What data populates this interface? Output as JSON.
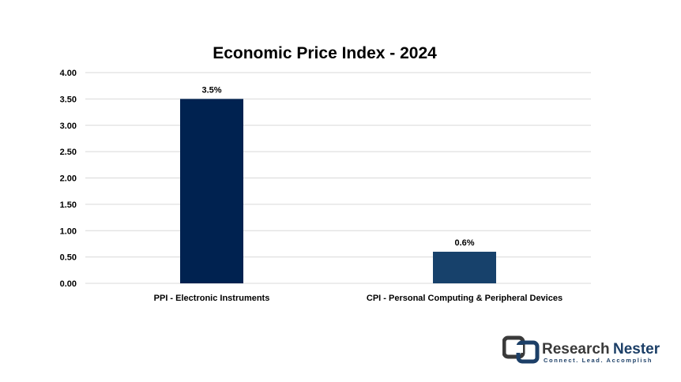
{
  "chart_data": {
    "type": "bar",
    "title": "Economic Price Index - 2024",
    "categories": [
      "PPI - Electronic Instruments",
      "CPI - Personal Computing & Peripheral Devices"
    ],
    "values": [
      3.5,
      0.6
    ],
    "data_labels": [
      "3.5%",
      "0.6%"
    ],
    "bar_colors": [
      "#002250",
      "#17416b"
    ],
    "ylim": [
      0,
      4
    ],
    "yticks": [
      "0.00",
      "0.50",
      "1.00",
      "1.50",
      "2.00",
      "2.50",
      "3.00",
      "3.50",
      "4.00"
    ],
    "grid": true,
    "legend": "none"
  },
  "brand": {
    "name_part1": "Research",
    "name_part2": "Nester",
    "tagline": "Connect. Lead. Accomplish",
    "colors": {
      "dark": "#3a3a3a",
      "navy": "#1c3f67"
    }
  }
}
